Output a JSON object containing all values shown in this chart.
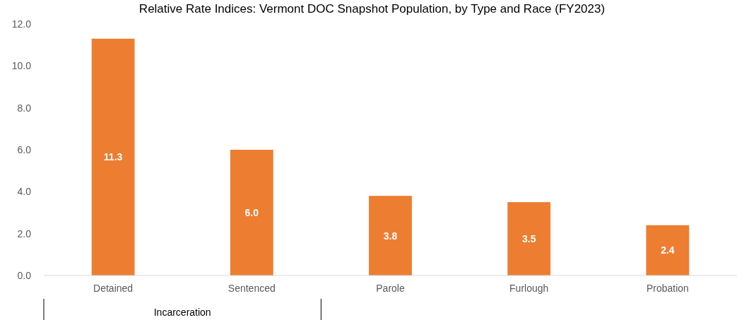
{
  "chart_data": {
    "type": "bar",
    "title": "Relative Rate Indices: Vermont DOC Snapshot Population, by Type and Race (FY2023)",
    "categories": [
      "Detained",
      "Sentenced",
      "Parole",
      "Furlough",
      "Probation"
    ],
    "values": [
      11.3,
      6.0,
      3.8,
      3.5,
      2.4
    ],
    "value_labels": [
      "11.3",
      "6.0",
      "3.8",
      "3.5",
      "2.4"
    ],
    "color": "#ed7d31",
    "ylim": [
      0,
      12
    ],
    "yticks": [
      {
        "value": 0,
        "label": "0.0"
      },
      {
        "value": 2,
        "label": "2.0"
      },
      {
        "value": 4,
        "label": "4.0"
      },
      {
        "value": 6,
        "label": "6.0"
      },
      {
        "value": 8,
        "label": "8.0"
      },
      {
        "value": 10,
        "label": "10.0"
      },
      {
        "value": 12,
        "label": "12.0"
      }
    ],
    "annotations": [
      "Incarceration"
    ]
  }
}
